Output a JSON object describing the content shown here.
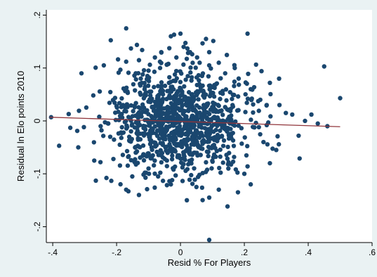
{
  "chart_data": {
    "type": "scatter",
    "xlabel": "Resid % For Players",
    "ylabel": "Residual ln Elo points 2010",
    "xlim": [
      -0.42,
      0.6
    ],
    "ylim": [
      -0.23,
      0.21
    ],
    "x_ticks": [
      -0.4,
      -0.2,
      0,
      0.2,
      0.4,
      0.6
    ],
    "x_tick_labels": [
      "-.4",
      "-.2",
      "0",
      ".2",
      ".4",
      ".6"
    ],
    "y_ticks": [
      -0.2,
      -0.1,
      0,
      0.1,
      0.2
    ],
    "y_tick_labels": [
      "-.2",
      "-.1",
      "0",
      ".1",
      ".2"
    ],
    "grid": false,
    "colors": {
      "points": "#1a476f",
      "fit_line": "#90353b",
      "plot_bg": "#ffffff",
      "outer_bg": "#eaf2f3"
    },
    "fit_line": {
      "x": [
        -0.41,
        0.5
      ],
      "y": [
        0.007,
        -0.011
      ]
    },
    "points_generation": {
      "count": 1000,
      "x_center": 0.0,
      "x_sd": 0.11,
      "y_center": 0.0,
      "y_sd": 0.05,
      "seed": 2010
    },
    "notable_points": [
      {
        "x": -0.405,
        "y": 0.007
      },
      {
        "x": -0.38,
        "y": -0.047
      },
      {
        "x": -0.35,
        "y": 0.013
      },
      {
        "x": -0.345,
        "y": -0.013
      },
      {
        "x": -0.32,
        "y": -0.05
      },
      {
        "x": -0.31,
        "y": 0.09
      },
      {
        "x": -0.265,
        "y": -0.113
      },
      {
        "x": -0.27,
        "y": -0.075
      },
      {
        "x": -0.24,
        "y": 0.105
      },
      {
        "x": -0.21,
        "y": -0.072
      },
      {
        "x": -0.18,
        "y": 0.03
      },
      {
        "x": -0.17,
        "y": -0.13
      },
      {
        "x": -0.17,
        "y": 0.112
      },
      {
        "x": -0.14,
        "y": 0.09
      },
      {
        "x": -0.13,
        "y": -0.14
      },
      {
        "x": -0.17,
        "y": 0.175
      },
      {
        "x": -0.155,
        "y": 0.137
      },
      {
        "x": -0.12,
        "y": 0.134
      },
      {
        "x": -0.1,
        "y": 0.095
      },
      {
        "x": -0.08,
        "y": 0.12
      },
      {
        "x": -0.06,
        "y": 0.13
      },
      {
        "x": -0.03,
        "y": 0.16
      },
      {
        "x": -0.02,
        "y": 0.163
      },
      {
        "x": 0.0,
        "y": 0.165
      },
      {
        "x": 0.01,
        "y": 0.14
      },
      {
        "x": 0.03,
        "y": 0.13
      },
      {
        "x": 0.06,
        "y": 0.11
      },
      {
        "x": 0.08,
        "y": 0.155
      },
      {
        "x": 0.09,
        "y": 0.13
      },
      {
        "x": 0.09,
        "y": 0.105
      },
      {
        "x": 0.12,
        "y": 0.11
      },
      {
        "x": 0.14,
        "y": 0.09
      },
      {
        "x": 0.17,
        "y": 0.1
      },
      {
        "x": 0.21,
        "y": 0.165
      },
      {
        "x": 0.22,
        "y": 0.06
      },
      {
        "x": 0.25,
        "y": 0.04
      },
      {
        "x": 0.28,
        "y": 0.072
      },
      {
        "x": 0.27,
        "y": 0.03
      },
      {
        "x": 0.31,
        "y": 0.03
      },
      {
        "x": 0.33,
        "y": 0.015
      },
      {
        "x": 0.35,
        "y": 0.012
      },
      {
        "x": 0.39,
        "y": 0.0
      },
      {
        "x": 0.41,
        "y": 0.012
      },
      {
        "x": 0.43,
        "y": -0.005
      },
      {
        "x": 0.46,
        "y": -0.01
      },
      {
        "x": 0.45,
        "y": 0.103
      },
      {
        "x": 0.5,
        "y": 0.043
      },
      {
        "x": 0.37,
        "y": -0.028
      },
      {
        "x": 0.3,
        "y": -0.055
      },
      {
        "x": 0.28,
        "y": -0.08
      },
      {
        "x": 0.26,
        "y": -0.04
      },
      {
        "x": 0.22,
        "y": -0.12
      },
      {
        "x": 0.2,
        "y": -0.1
      },
      {
        "x": 0.18,
        "y": -0.135
      },
      {
        "x": 0.15,
        "y": -0.09
      },
      {
        "x": 0.12,
        "y": -0.13
      },
      {
        "x": 0.09,
        "y": -0.145
      },
      {
        "x": 0.09,
        "y": -0.225
      },
      {
        "x": 0.05,
        "y": -0.125
      },
      {
        "x": 0.02,
        "y": -0.15
      },
      {
        "x": -0.03,
        "y": -0.12
      },
      {
        "x": -0.07,
        "y": -0.105
      },
      {
        "x": -0.1,
        "y": -0.09
      },
      {
        "x": -0.14,
        "y": -0.06
      },
      {
        "x": -0.19,
        "y": -0.045
      },
      {
        "x": -0.22,
        "y": -0.03
      },
      {
        "x": -0.25,
        "y": -0.01
      }
    ]
  }
}
